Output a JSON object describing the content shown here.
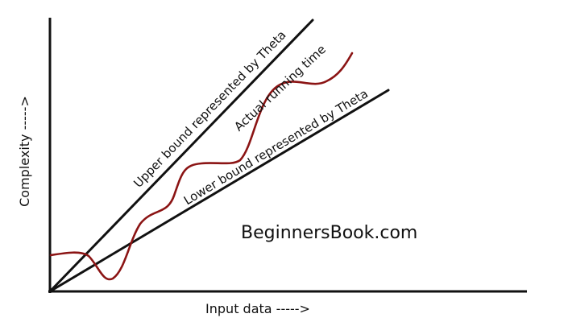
{
  "colors": {
    "axis": "#111111",
    "curve": "#8b1414",
    "text": "#111111",
    "background": "#ffffff"
  },
  "axes": {
    "x_label": "Input data ----->",
    "y_label": "Complexity ----->"
  },
  "lines": {
    "upper_label": "Upper bound represented by Theta",
    "actual_label": "Actual running time",
    "lower_label": "Lower bound represented by Theta"
  },
  "watermark": "BeginnersBook.com"
}
